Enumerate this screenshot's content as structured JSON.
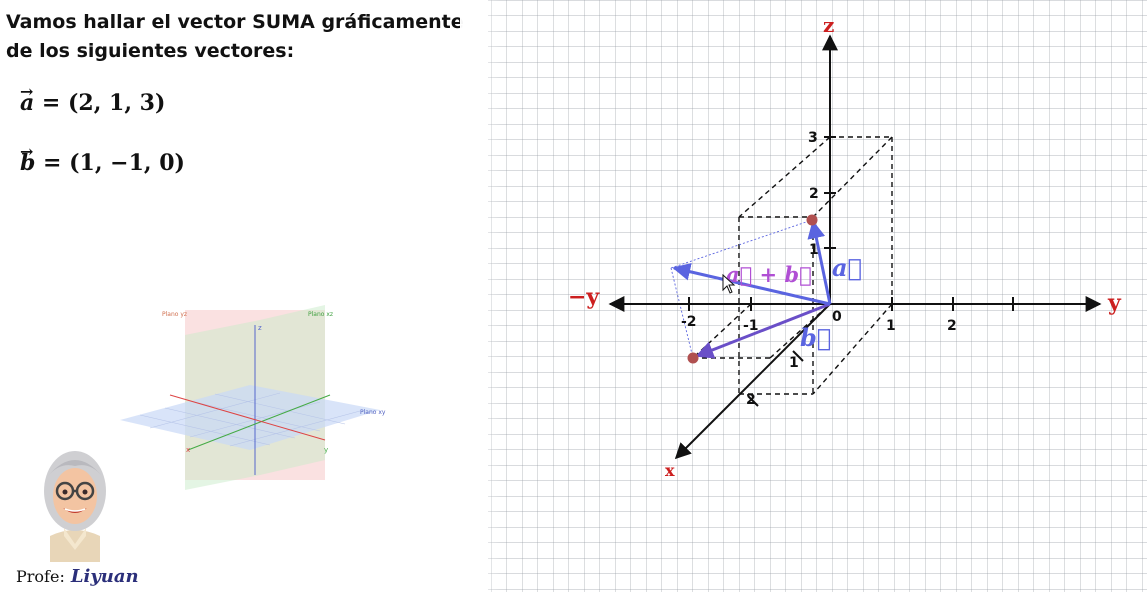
{
  "title": "Vamos hallar el vector SUMA gráficamente de los siguientes vectores:",
  "vectors": {
    "a": {
      "letter": "a",
      "arrow": "→",
      "expr": " = (2, 1, 3)"
    },
    "b": {
      "letter": "b",
      "arrow": "→",
      "expr": " = (1, −1, 0)"
    }
  },
  "illustration": {
    "plane_yz": "Plano yz",
    "plane_xz": "Plano xz",
    "plane_xy": "Plano xy",
    "axis_x": "x",
    "axis_y": "y",
    "axis_z": "z"
  },
  "author": {
    "label": "Profe:",
    "name": "Liyuan"
  },
  "graph": {
    "axis_z_label": "z",
    "axis_y_pos_label": "y",
    "axis_y_neg_label": "−y",
    "axis_x_label": "x",
    "origin_label": "0",
    "z_ticks": [
      "1",
      "2",
      "3"
    ],
    "y_pos_ticks": [
      "1",
      "2"
    ],
    "y_neg_ticks": [
      "-2",
      "-1"
    ],
    "x_ticks": [
      "1",
      "2"
    ],
    "label_sum": "a⃗ + b⃗",
    "label_a": "a⃗",
    "label_b": "b⃗",
    "colors": {
      "axis_label": "#cc1f1f",
      "vector_a": "#5a64e0",
      "vector_b": "#6a4fc8",
      "vector_sum": "#5a64e0",
      "sum_label": "#b04fd4",
      "point": "#b05050"
    }
  }
}
